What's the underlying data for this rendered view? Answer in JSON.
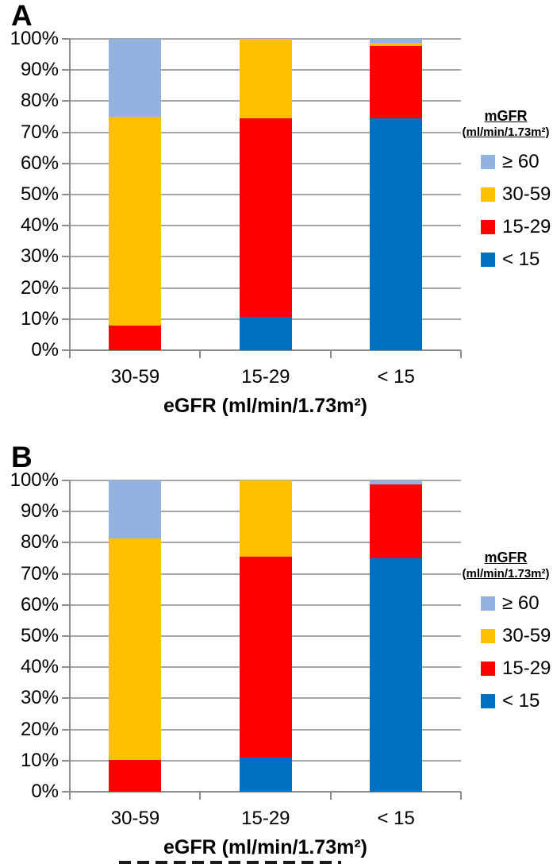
{
  "colors": {
    "grid": "#a6a6a6",
    "axis": "#8c8c8c",
    "tick": "#8c8c8c",
    "lt15_blue": "#0070c0",
    "c15_29_red": "#ff0000",
    "c30_59_yellow": "#ffc000",
    "gte60_lightblue": "#92b2df"
  },
  "legend": {
    "title": "mGFR",
    "subtitle": "(ml/min/1.73m²)",
    "entries": [
      {
        "label": "≥ 60",
        "color": "#92b2df"
      },
      {
        "label": "30-59",
        "color": "#ffc000"
      },
      {
        "label": "15-29",
        "color": "#ff0000"
      },
      {
        "label": "< 15",
        "color": "#0070c0"
      }
    ]
  },
  "chart_data": [
    {
      "panel": "A",
      "type": "bar",
      "subtype": "100%-stacked-column",
      "categories": [
        "30-59",
        "15-29",
        "< 15"
      ],
      "xlabel": "eGFR (ml/min/1.73m²)",
      "ylabel": "",
      "ylim": [
        0,
        100
      ],
      "grid": true,
      "legend_position": "right",
      "yticks": [
        "100%",
        "90%",
        "80%",
        "70%",
        "60%",
        "50%",
        "40%",
        "30%",
        "20%",
        "10%",
        "0%"
      ],
      "series": [
        {
          "name": "< 15",
          "color": "#0070c0",
          "values": [
            0,
            10.7,
            74.5
          ]
        },
        {
          "name": "15-29",
          "color": "#ff0000",
          "values": [
            7.9,
            63.8,
            23.2
          ]
        },
        {
          "name": "30-59",
          "color": "#ffc000",
          "values": [
            67.1,
            25.5,
            1.1
          ]
        },
        {
          "name": "≥ 60",
          "color": "#92b2df",
          "values": [
            25.0,
            0,
            1.2
          ]
        }
      ]
    },
    {
      "panel": "B",
      "type": "bar",
      "subtype": "100%-stacked-column",
      "categories": [
        "30-59",
        "15-29",
        "< 15"
      ],
      "xlabel": "eGFR (ml/min/1.73m²)",
      "ylabel": "",
      "ylim": [
        0,
        100
      ],
      "grid": true,
      "legend_position": "right",
      "yticks": [
        "100%",
        "90%",
        "80%",
        "70%",
        "60%",
        "50%",
        "40%",
        "30%",
        "20%",
        "10%",
        "0%"
      ],
      "series": [
        {
          "name": "< 15",
          "color": "#0070c0",
          "values": [
            0,
            10.9,
            75.1
          ]
        },
        {
          "name": "15-29",
          "color": "#ff0000",
          "values": [
            10.2,
            64.7,
            23.6
          ]
        },
        {
          "name": "30-59",
          "color": "#ffc000",
          "values": [
            71.3,
            24.4,
            0
          ]
        },
        {
          "name": "≥ 60",
          "color": "#92b2df",
          "values": [
            18.5,
            0,
            1.3
          ]
        }
      ]
    }
  ]
}
